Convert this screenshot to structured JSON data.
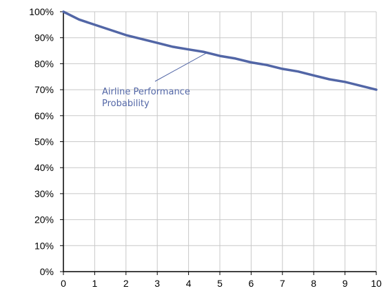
{
  "chart_data": {
    "type": "line",
    "title": "",
    "xlabel": "",
    "ylabel": "",
    "xlim": [
      0,
      10
    ],
    "ylim": [
      0,
      100
    ],
    "grid": true,
    "legend": "none",
    "x_ticks": [
      "0",
      "1",
      "2",
      "3",
      "4",
      "5",
      "6",
      "7",
      "8",
      "9",
      "10"
    ],
    "y_ticks": [
      "0%",
      "10%",
      "20%",
      "30%",
      "40%",
      "50%",
      "60%",
      "70%",
      "80%",
      "90%",
      "100%"
    ],
    "series": [
      {
        "color": "#5266a6",
        "x": [
          0,
          0.5,
          1,
          1.5,
          2,
          2.5,
          3,
          3.5,
          4,
          4.5,
          5,
          5.5,
          6,
          6.5,
          7,
          7.5,
          8,
          8.5,
          9,
          9.5,
          10
        ],
        "y": [
          100,
          97,
          95,
          93,
          91,
          89.5,
          88,
          86.5,
          85.5,
          84.5,
          83,
          82,
          80.5,
          79.5,
          78,
          77,
          75.5,
          74,
          73,
          71.5,
          70
        ]
      }
    ],
    "annotations": [
      {
        "lines": [
          "Airline Performance",
          "Probability"
        ],
        "color": "#5266a6",
        "points_to": {
          "x": 4.6,
          "y": 84.3
        }
      }
    ]
  }
}
